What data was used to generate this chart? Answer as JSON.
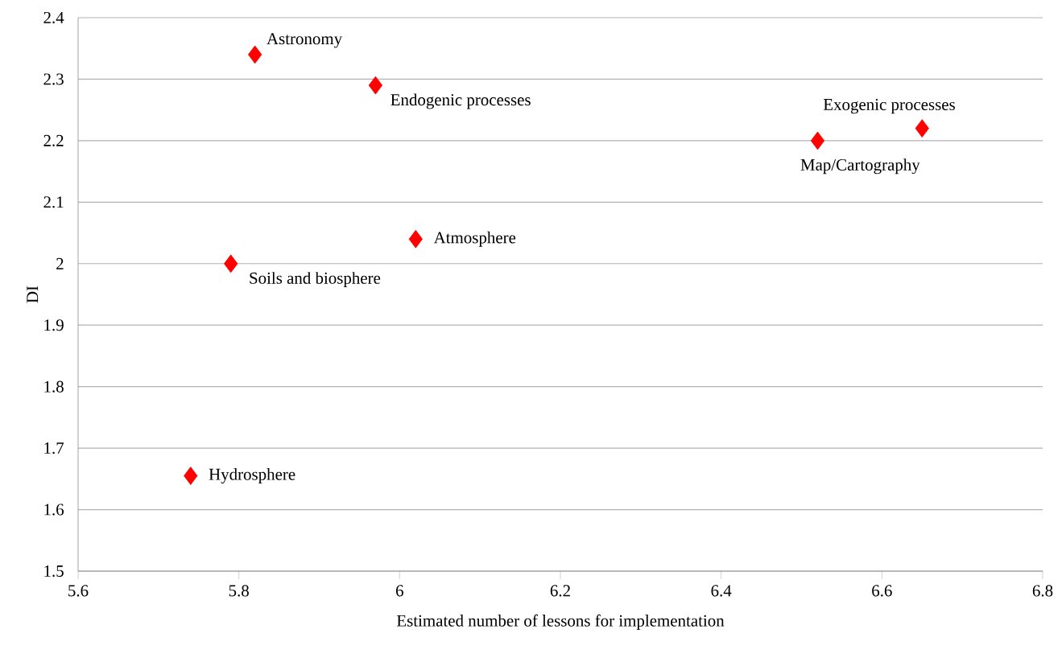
{
  "chart_data": {
    "type": "scatter",
    "xlabel": "Estimated number of lessons for implementation",
    "ylabel": "DI",
    "xlim": [
      5.6,
      6.8
    ],
    "ylim": [
      1.5,
      2.4
    ],
    "xticks": [
      5.6,
      5.8,
      6,
      6.2,
      6.4,
      6.6,
      6.8
    ],
    "yticks": [
      1.5,
      1.6,
      1.7,
      1.8,
      1.9,
      2,
      2.1,
      2.2,
      2.3,
      2.4
    ],
    "grid": "y",
    "marker": "diamond",
    "series": [
      {
        "color": "#ff0000",
        "x": [
          5.82,
          5.97,
          6.65,
          6.52,
          6.02,
          5.79,
          5.74
        ],
        "values": [
          2.34,
          2.29,
          2.22,
          2.2,
          2.04,
          2.0,
          1.655
        ]
      }
    ],
    "annotations": [
      {
        "text": "Astronomy",
        "x": 5.82,
        "y": 2.34
      },
      {
        "text": "Endogenic processes",
        "x": 5.97,
        "y": 2.29
      },
      {
        "text": "Exogenic processes",
        "x": 6.65,
        "y": 2.22
      },
      {
        "text": "Map/Cartography",
        "x": 6.52,
        "y": 2.2
      },
      {
        "text": "Atmosphere",
        "x": 6.02,
        "y": 2.04
      },
      {
        "text": "Soils and biosphere",
        "x": 5.79,
        "y": 2.0
      },
      {
        "text": "Hydrosphere",
        "x": 5.74,
        "y": 1.655
      }
    ]
  }
}
